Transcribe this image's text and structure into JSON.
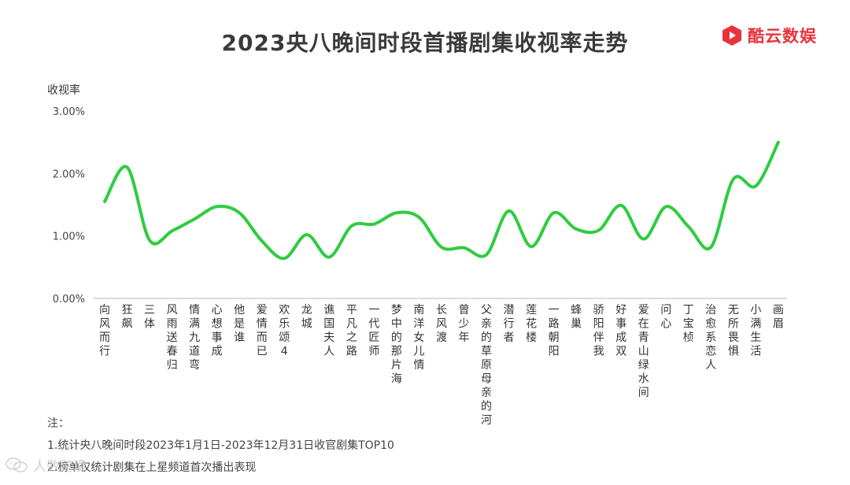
{
  "title": "2023央八晚间时段首播剧集收视率走势",
  "brand": {
    "name": "酷云数娱",
    "color": "#e8333a",
    "logo_icon": "play-hexagon-icon"
  },
  "watermark": {
    "text": "人数跨境",
    "icon": "wechat-icon"
  },
  "notes": {
    "heading": "注：",
    "lines": [
      "1.统计央八晚间时段2023年1月1日-2023年12月31日收官剧集TOP10",
      "2.榜单仅统计剧集在上星频道首次播出表现"
    ]
  },
  "chart_data": {
    "type": "line",
    "ylabel": "收视率",
    "ylim": [
      0,
      3
    ],
    "yticks": [
      "0.00%",
      "1.00%",
      "2.00%",
      "3.00%"
    ],
    "grid": false,
    "line_color": "#2ecc40",
    "categories": [
      "向风而行",
      "狂飙",
      "三体",
      "风雨送春归",
      "情满九道弯",
      "心想事成",
      "他是谁",
      "爱情而已",
      "欢乐颂4",
      "龙城",
      "谯国夫人",
      "平凡之路",
      "一代匠师",
      "梦中的那片海",
      "南洋女儿情",
      "长风渡",
      "曾少年",
      "父亲的草原母亲的河",
      "潜行者",
      "莲花楼",
      "一路朝阳",
      "蜂巢",
      "骄阳伴我",
      "好事成双",
      "爱在青山绿水间",
      "问心",
      "丁宝桢",
      "治愈系恋人",
      "无所畏惧",
      "小满生活",
      "画眉"
    ],
    "values": [
      1.55,
      2.1,
      0.93,
      1.08,
      1.27,
      1.47,
      1.37,
      0.92,
      0.64,
      1.02,
      0.66,
      1.16,
      1.19,
      1.37,
      1.3,
      0.82,
      0.81,
      0.7,
      1.4,
      0.83,
      1.37,
      1.11,
      1.09,
      1.49,
      0.95,
      1.47,
      1.15,
      0.82,
      1.91,
      1.8,
      2.5
    ]
  }
}
